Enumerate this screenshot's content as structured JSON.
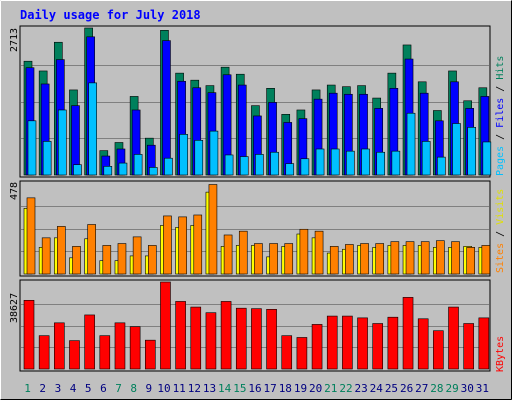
{
  "title": "Daily usage for July 2018",
  "colors": {
    "background": "#c0c0c0",
    "title": "#0000ff",
    "hits": "#00805c",
    "files": "#0000ff",
    "pages": "#00c0ff",
    "visits": "#ffff00",
    "sites": "#ff8000",
    "kbytes": "#ff0000",
    "weekend_label": "#00805c",
    "weekday_label": "#000080"
  },
  "chart_data": [
    {
      "type": "bar",
      "name": "hits-files-pages",
      "ymax_label": "2713",
      "ylim": [
        0,
        2713
      ],
      "right_label": [
        "Pages",
        "Files",
        "Hits"
      ],
      "categories": [
        "1",
        "2",
        "3",
        "4",
        "5",
        "6",
        "7",
        "8",
        "9",
        "10",
        "11",
        "12",
        "13",
        "14",
        "15",
        "16",
        "17",
        "18",
        "19",
        "20",
        "21",
        "22",
        "23",
        "24",
        "25",
        "26",
        "27",
        "28",
        "29",
        "30",
        "31"
      ],
      "series": [
        {
          "name": "Hits",
          "values": [
            2100,
            1920,
            2450,
            1570,
            2713,
            450,
            600,
            1450,
            680,
            2670,
            1880,
            1750,
            1650,
            1990,
            1860,
            1280,
            1600,
            1120,
            1200,
            1570,
            1660,
            1630,
            1650,
            1420,
            1880,
            2400,
            1720,
            1190,
            1920,
            1370,
            1610
          ]
        },
        {
          "name": "Files",
          "values": [
            1980,
            1680,
            2130,
            1280,
            2550,
            350,
            480,
            1200,
            550,
            2480,
            1730,
            1610,
            1520,
            1850,
            1660,
            1090,
            1340,
            970,
            1040,
            1400,
            1510,
            1490,
            1490,
            1230,
            1600,
            2140,
            1510,
            1000,
            1720,
            1230,
            1450
          ]
        },
        {
          "name": "Pages",
          "values": [
            1000,
            620,
            1200,
            190,
            1700,
            160,
            220,
            380,
            140,
            310,
            750,
            640,
            810,
            370,
            340,
            380,
            420,
            210,
            300,
            480,
            480,
            440,
            480,
            420,
            440,
            1140,
            620,
            330,
            950,
            880,
            610
          ]
        }
      ]
    },
    {
      "type": "bar",
      "name": "visits-sites",
      "ymax_label": "478",
      "ylim": [
        0,
        478
      ],
      "right_label": [
        "Sites",
        "Visits"
      ],
      "series": [
        {
          "name": "Visits",
          "values": [
            345,
            140,
            190,
            85,
            185,
            70,
            70,
            95,
            95,
            255,
            245,
            255,
            430,
            145,
            150,
            150,
            90,
            145,
            210,
            190,
            110,
            130,
            150,
            140,
            150,
            150,
            150,
            140,
            140,
            145,
            140
          ]
        },
        {
          "name": "Sites",
          "values": [
            400,
            190,
            250,
            145,
            260,
            150,
            160,
            195,
            150,
            305,
            300,
            310,
            470,
            205,
            225,
            160,
            160,
            160,
            235,
            225,
            145,
            155,
            160,
            160,
            170,
            170,
            170,
            175,
            170,
            140,
            150
          ]
        }
      ]
    },
    {
      "type": "bar",
      "name": "kbytes",
      "ymax_label": "38627",
      "ylim": [
        0,
        38627
      ],
      "right_label": [
        "KBytes"
      ],
      "series": [
        {
          "name": "KBytes",
          "values": [
            30500,
            14800,
            20500,
            12600,
            24000,
            14800,
            20500,
            18800,
            12800,
            38627,
            30000,
            27500,
            25000,
            30000,
            27000,
            26800,
            26500,
            14800,
            14000,
            19800,
            23500,
            23500,
            22700,
            20200,
            23000,
            31800,
            22300,
            17000,
            27500,
            20200,
            22700
          ]
        }
      ]
    }
  ],
  "x_axis": {
    "labels": [
      "1",
      "2",
      "3",
      "4",
      "5",
      "6",
      "7",
      "8",
      "9",
      "10",
      "11",
      "12",
      "13",
      "14",
      "15",
      "16",
      "17",
      "18",
      "19",
      "20",
      "21",
      "22",
      "23",
      "24",
      "25",
      "26",
      "27",
      "28",
      "29",
      "30",
      "31"
    ],
    "weekend": [
      1,
      7,
      8,
      14,
      15,
      21,
      22,
      28,
      29
    ]
  }
}
